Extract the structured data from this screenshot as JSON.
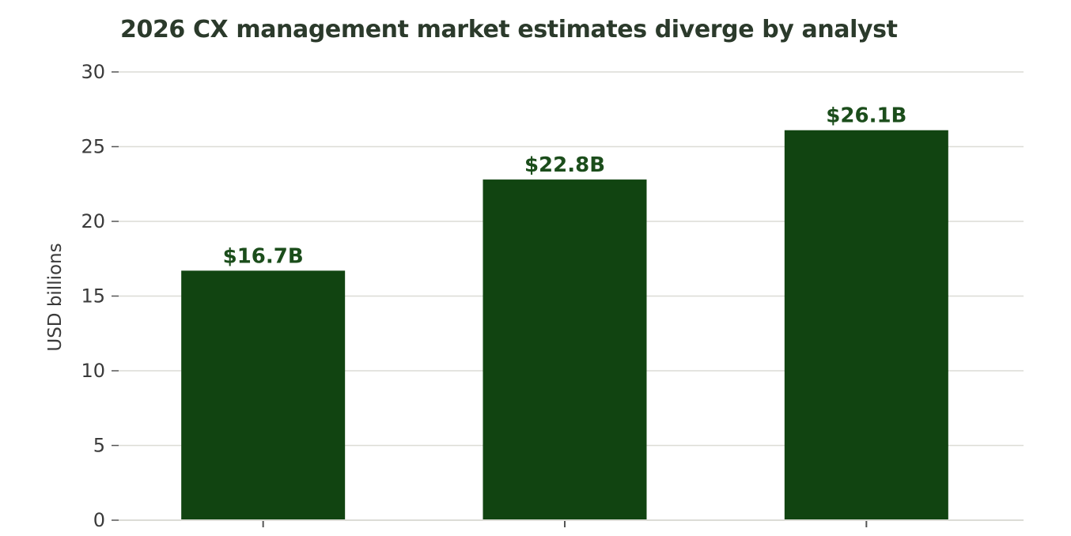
{
  "chart_data": {
    "type": "bar",
    "title": "2026 CX management market estimates diverge by analyst",
    "xlabel": "",
    "ylabel": "USD billions",
    "categories": [
      "",
      "",
      ""
    ],
    "values": [
      16.7,
      22.8,
      26.1
    ],
    "data_labels": [
      "$16.7B",
      "$22.8B",
      "$26.1B"
    ],
    "ylim": [
      0,
      30
    ],
    "yticks": [
      0,
      5,
      10,
      15,
      20,
      25,
      30
    ],
    "grid": true,
    "legend": "none",
    "colors": {
      "bar": "#114411",
      "bar_label": "#1b4d1b",
      "grid": "#dcdcd6",
      "axis": "#555555",
      "title": "#2b3a2b"
    }
  }
}
